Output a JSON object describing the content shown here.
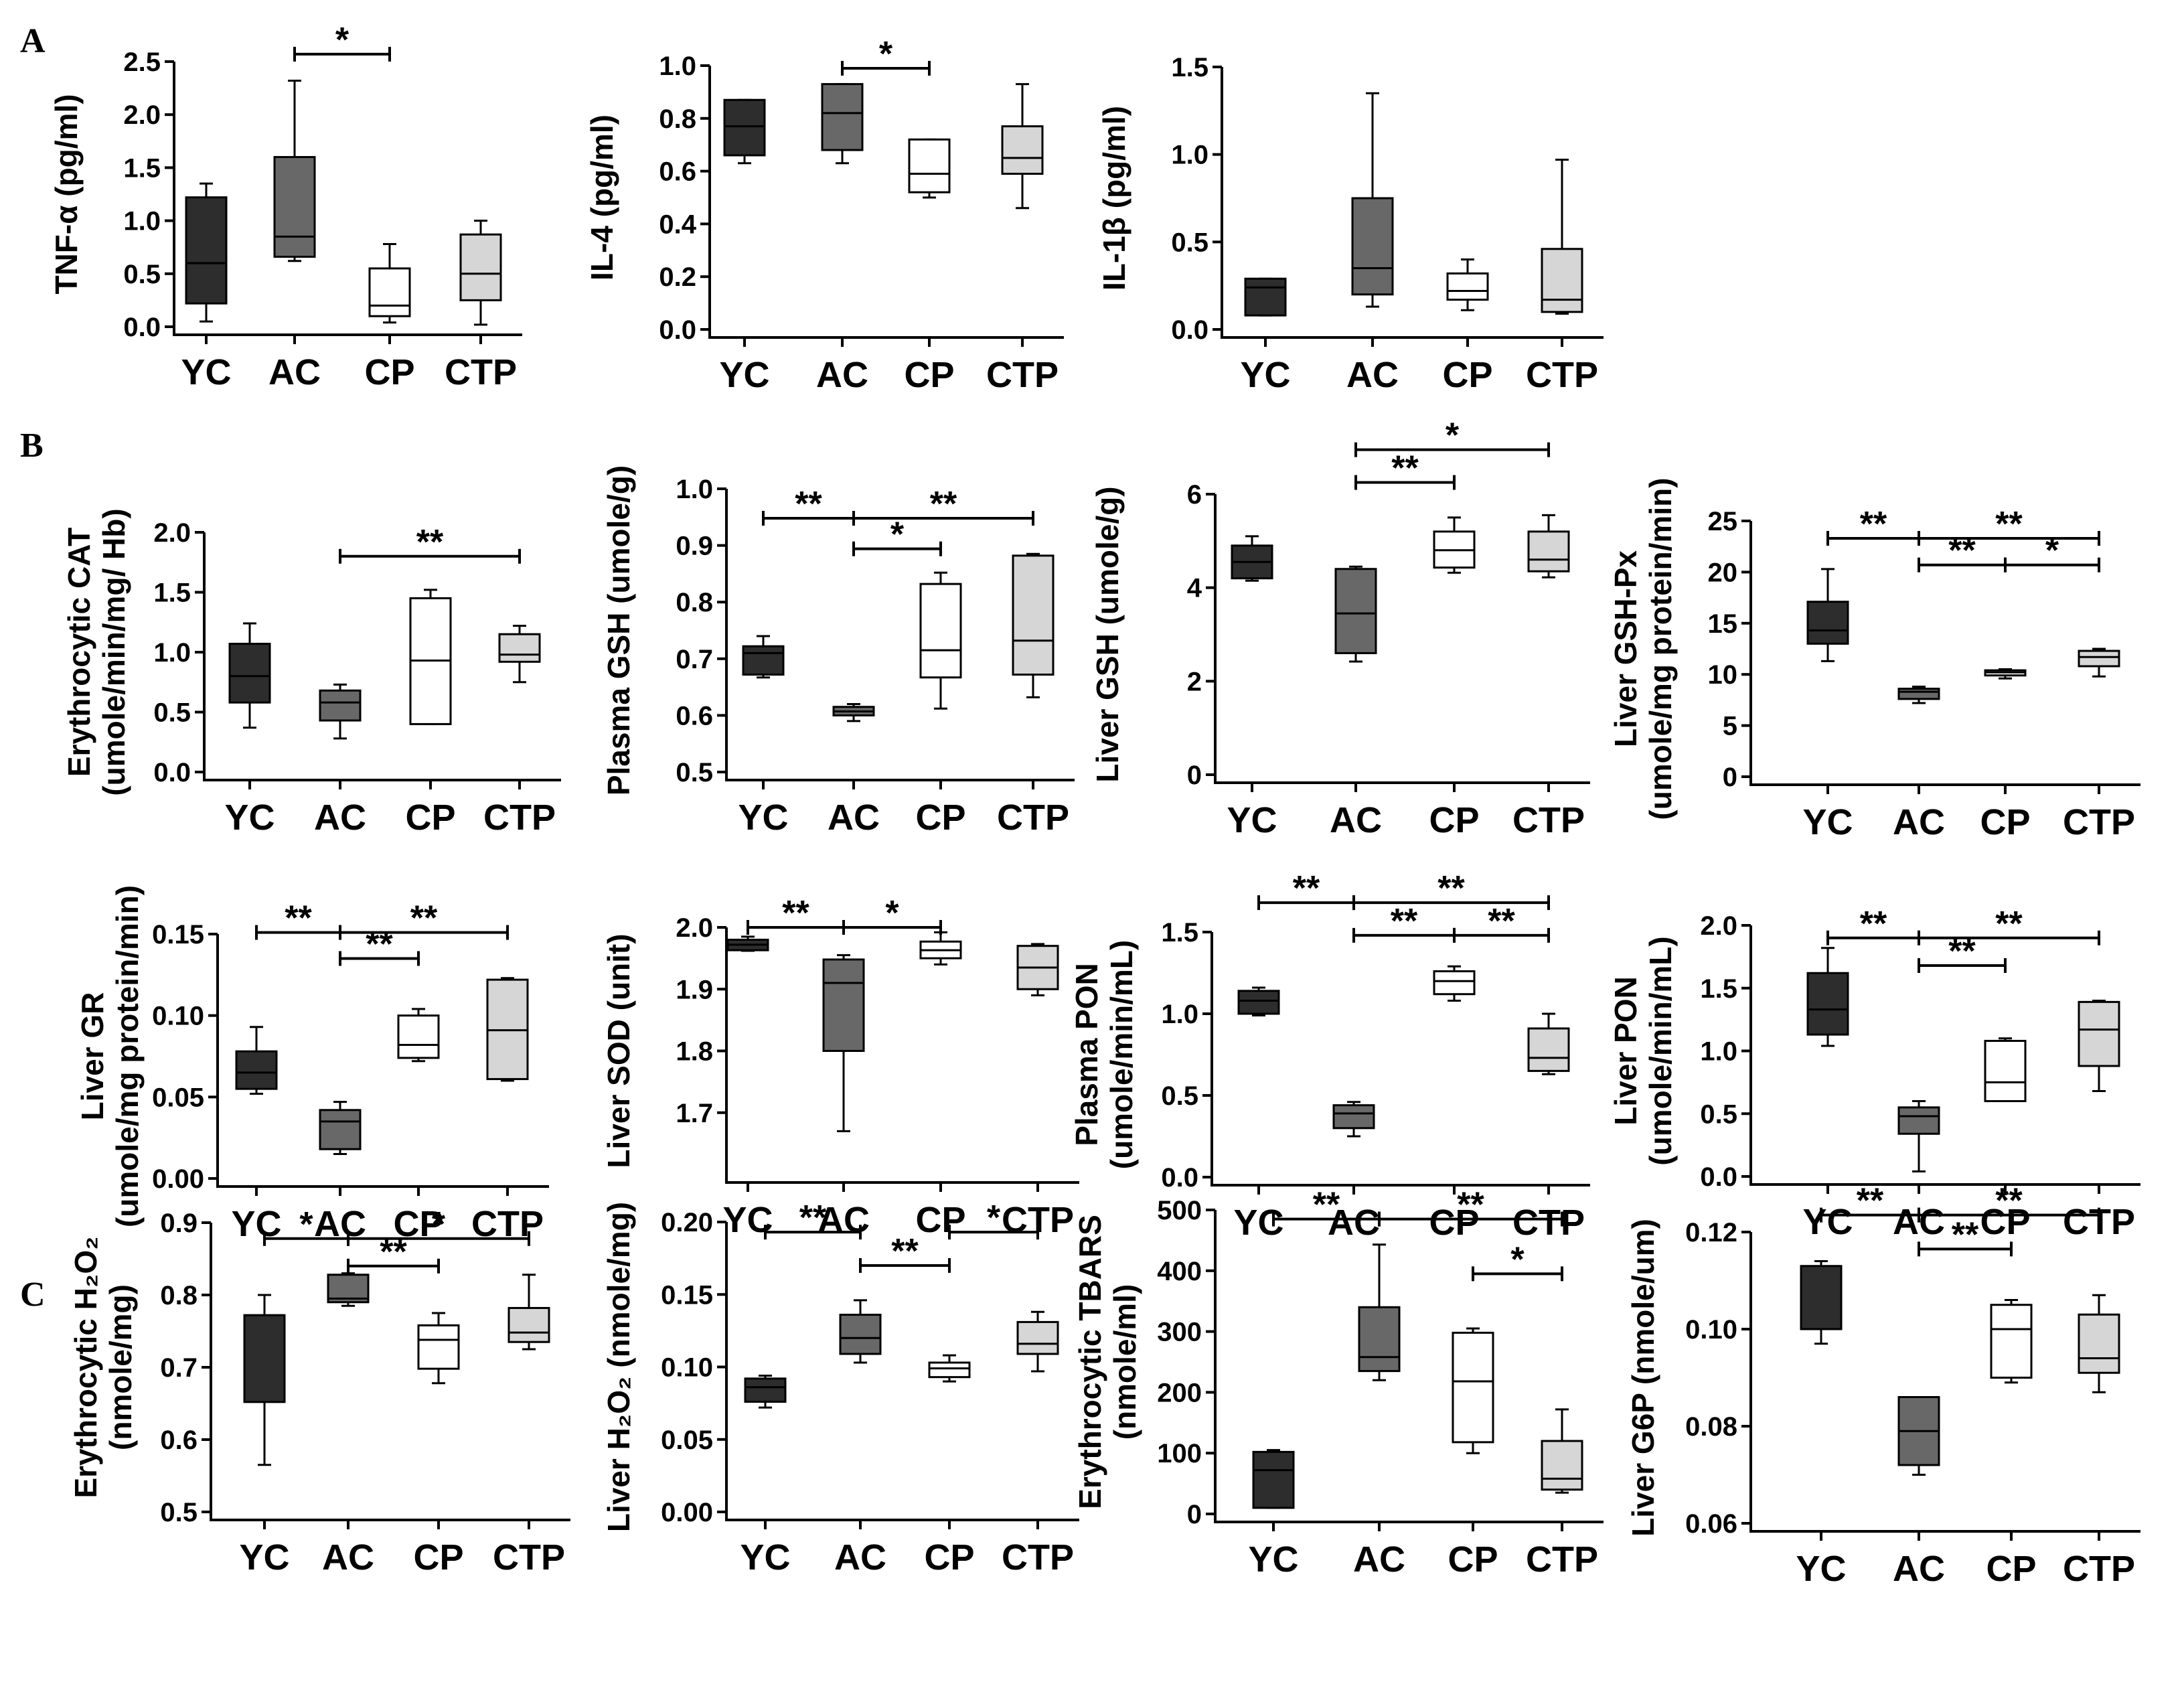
{
  "panel_labels": [
    "A",
    "B",
    "C"
  ],
  "colors": {
    "YC": "#2d2d2d",
    "AC": "#686868",
    "CP": "#ffffff",
    "CTP": "#d6d6d6",
    "stroke": "#000000"
  },
  "chart_data": [
    {
      "type": "box",
      "panel": "A",
      "ylabel": [
        "TNF-α (pg/ml)"
      ],
      "ylim": [
        0,
        2.5
      ],
      "ticks": [
        "0.0",
        "0.5",
        "1.0",
        "1.5",
        "2.0",
        "2.5"
      ],
      "categories": [
        "YC",
        "AC",
        "CP",
        "CTP"
      ],
      "boxes": [
        {
          "min": 0.05,
          "q1": 0.22,
          "median": 0.6,
          "q3": 1.22,
          "max": 1.35
        },
        {
          "min": 0.62,
          "q1": 0.66,
          "median": 0.85,
          "q3": 1.6,
          "max": 2.32
        },
        {
          "min": 0.04,
          "q1": 0.1,
          "median": 0.2,
          "q3": 0.55,
          "max": 0.78
        },
        {
          "min": 0.02,
          "q1": 0.25,
          "median": 0.5,
          "q3": 0.87,
          "max": 1.0
        }
      ],
      "significance": [
        {
          "from": 1,
          "to": 2,
          "y": 2.57,
          "label": "*"
        }
      ]
    },
    {
      "type": "box",
      "panel": "A",
      "ylabel": [
        "IL-4 (pg/ml)"
      ],
      "ylim": [
        0,
        1.0
      ],
      "ticks": [
        "0.0",
        "0.2",
        "0.4",
        "0.6",
        "0.8",
        "1.0"
      ],
      "categories": [
        "YC",
        "AC",
        "CP",
        "CTP"
      ],
      "boxes": [
        {
          "min": 0.63,
          "q1": 0.66,
          "median": 0.77,
          "q3": 0.87,
          "max": 0.87
        },
        {
          "min": 0.63,
          "q1": 0.68,
          "median": 0.82,
          "q3": 0.93,
          "max": 0.93
        },
        {
          "min": 0.5,
          "q1": 0.52,
          "median": 0.59,
          "q3": 0.72,
          "max": 0.72
        },
        {
          "min": 0.46,
          "q1": 0.59,
          "median": 0.65,
          "q3": 0.77,
          "max": 0.93
        }
      ],
      "significance": [
        {
          "from": 1,
          "to": 2,
          "y": 0.99,
          "label": "*"
        }
      ]
    },
    {
      "type": "box",
      "panel": "A",
      "ylabel": [
        "IL-1β (pg/ml)"
      ],
      "ylim": [
        0,
        1.5
      ],
      "ticks": [
        "0.0",
        "0.5",
        "1.0",
        "1.5"
      ],
      "categories": [
        "YC",
        "AC",
        "CP",
        "CTP"
      ],
      "boxes": [
        {
          "min": 0.08,
          "q1": 0.08,
          "median": 0.24,
          "q3": 0.29,
          "max": 0.29
        },
        {
          "min": 0.13,
          "q1": 0.2,
          "median": 0.35,
          "q3": 0.75,
          "max": 1.35
        },
        {
          "min": 0.11,
          "q1": 0.17,
          "median": 0.22,
          "q3": 0.32,
          "max": 0.4
        },
        {
          "min": 0.09,
          "q1": 0.1,
          "median": 0.17,
          "q3": 0.46,
          "max": 0.97
        }
      ],
      "significance": []
    },
    {
      "type": "box",
      "panel": "B",
      "ylabel": [
        "Erythrocytic CAT",
        "(umole/min/mg/ Hb)"
      ],
      "ylim": [
        0,
        2.0
      ],
      "ticks": [
        "0.0",
        "0.5",
        "1.0",
        "1.5",
        "2.0"
      ],
      "categories": [
        "YC",
        "AC",
        "CP",
        "CTP"
      ],
      "boxes": [
        {
          "min": 0.37,
          "q1": 0.58,
          "median": 0.8,
          "q3": 1.07,
          "max": 1.24
        },
        {
          "min": 0.28,
          "q1": 0.43,
          "median": 0.58,
          "q3": 0.68,
          "max": 0.73
        },
        {
          "min": 0.4,
          "q1": 0.4,
          "median": 0.93,
          "q3": 1.45,
          "max": 1.52
        },
        {
          "min": 0.75,
          "q1": 0.92,
          "median": 0.98,
          "q3": 1.15,
          "max": 1.22
        }
      ],
      "significance": [
        {
          "from": 1,
          "to": 3,
          "y": 1.8,
          "label": "**"
        }
      ]
    },
    {
      "type": "box",
      "panel": "B",
      "ylabel": [
        "Plasma GSH (umole/g)"
      ],
      "ylim": [
        0.5,
        1.0
      ],
      "ticks": [
        "0.5",
        "0.6",
        "0.7",
        "0.8",
        "0.9",
        "1.0"
      ],
      "categories": [
        "YC",
        "AC",
        "CP",
        "CTP"
      ],
      "boxes": [
        {
          "min": 0.667,
          "q1": 0.672,
          "median": 0.71,
          "q3": 0.722,
          "max": 0.74
        },
        {
          "min": 0.59,
          "q1": 0.6,
          "median": 0.607,
          "q3": 0.615,
          "max": 0.62
        },
        {
          "min": 0.612,
          "q1": 0.667,
          "median": 0.715,
          "q3": 0.832,
          "max": 0.852
        },
        {
          "min": 0.632,
          "q1": 0.672,
          "median": 0.732,
          "q3": 0.882,
          "max": 0.885
        }
      ],
      "significance": [
        {
          "from": 0,
          "to": 1,
          "y": 0.948,
          "label": "**"
        },
        {
          "from": 1,
          "to": 3,
          "y": 0.948,
          "label": "**"
        },
        {
          "from": 1,
          "to": 2,
          "y": 0.894,
          "label": "*"
        }
      ]
    },
    {
      "type": "box",
      "panel": "B",
      "ylabel": [
        "Liver GSH (umole/g)"
      ],
      "ylim": [
        0,
        6
      ],
      "ticks": [
        "0",
        "2",
        "4",
        "6"
      ],
      "categories": [
        "YC",
        "AC",
        "CP",
        "CTP"
      ],
      "boxes": [
        {
          "min": 4.15,
          "q1": 4.2,
          "median": 4.55,
          "q3": 4.9,
          "max": 5.1
        },
        {
          "min": 2.42,
          "q1": 2.6,
          "median": 3.45,
          "q3": 4.4,
          "max": 4.45
        },
        {
          "min": 4.32,
          "q1": 4.43,
          "median": 4.8,
          "q3": 5.2,
          "max": 5.5
        },
        {
          "min": 4.22,
          "q1": 4.35,
          "median": 4.6,
          "q3": 5.2,
          "max": 5.55
        }
      ],
      "significance": [
        {
          "from": 1,
          "to": 3,
          "y": 6.95,
          "label": "*"
        },
        {
          "from": 1,
          "to": 2,
          "y": 6.25,
          "label": "**"
        }
      ]
    },
    {
      "type": "box",
      "panel": "B",
      "ylabel": [
        "Liver GSH-Px",
        "(umole/mg protein/min)"
      ],
      "ylim": [
        0,
        25
      ],
      "ticks": [
        "0",
        "5",
        "10",
        "15",
        "20",
        "25"
      ],
      "categories": [
        "YC",
        "AC",
        "CP",
        "CTP"
      ],
      "boxes": [
        {
          "min": 11.3,
          "q1": 13.0,
          "median": 14.3,
          "q3": 17.1,
          "max": 20.3
        },
        {
          "min": 7.2,
          "q1": 7.6,
          "median": 8.3,
          "q3": 8.6,
          "max": 8.8
        },
        {
          "min": 9.6,
          "q1": 9.9,
          "median": 10.2,
          "q3": 10.4,
          "max": 10.5
        },
        {
          "min": 9.8,
          "q1": 10.8,
          "median": 11.7,
          "q3": 12.3,
          "max": 12.5
        }
      ],
      "significance": [
        {
          "from": 0,
          "to": 1,
          "y": 23.3,
          "label": "**"
        },
        {
          "from": 1,
          "to": 3,
          "y": 23.3,
          "label": "**"
        },
        {
          "from": 1,
          "to": 2,
          "y": 20.7,
          "label": "**"
        },
        {
          "from": 2,
          "to": 3,
          "y": 20.7,
          "label": "*"
        }
      ]
    },
    {
      "type": "box",
      "panel": "B",
      "ylabel": [
        "Liver GR",
        "(umole/mg protein/min)"
      ],
      "ylim": [
        0,
        0.15
      ],
      "ticks": [
        "0.00",
        "0.05",
        "0.10",
        "0.15"
      ],
      "categories": [
        "YC",
        "AC",
        "CP",
        "CTP"
      ],
      "boxes": [
        {
          "min": 0.052,
          "q1": 0.055,
          "median": 0.065,
          "q3": 0.078,
          "max": 0.093
        },
        {
          "min": 0.015,
          "q1": 0.018,
          "median": 0.035,
          "q3": 0.042,
          "max": 0.047
        },
        {
          "min": 0.072,
          "q1": 0.074,
          "median": 0.082,
          "q3": 0.1,
          "max": 0.104
        },
        {
          "min": 0.06,
          "q1": 0.061,
          "median": 0.091,
          "q3": 0.122,
          "max": 0.123
        }
      ],
      "significance": [
        {
          "from": 0,
          "to": 1,
          "y": 0.151,
          "label": "**"
        },
        {
          "from": 1,
          "to": 3,
          "y": 0.151,
          "label": "**"
        },
        {
          "from": 1,
          "to": 2,
          "y": 0.135,
          "label": "**"
        }
      ]
    },
    {
      "type": "box",
      "panel": "B",
      "ylabel": [
        "Liver SOD (unit)"
      ],
      "ylim": [
        1.6,
        2.0
      ],
      "ticks": [
        "1.7",
        "1.8",
        "1.9",
        "2.0"
      ],
      "categories": [
        "YC",
        "AC",
        "CP",
        "CTP"
      ],
      "boxes": [
        {
          "min": 1.962,
          "q1": 1.963,
          "median": 1.972,
          "q3": 1.98,
          "max": 1.985
        },
        {
          "min": 1.67,
          "q1": 1.8,
          "median": 1.91,
          "q3": 1.948,
          "max": 1.955
        },
        {
          "min": 1.94,
          "q1": 1.95,
          "median": 1.963,
          "q3": 1.977,
          "max": 1.992
        },
        {
          "min": 1.89,
          "q1": 1.9,
          "median": 1.935,
          "q3": 1.97,
          "max": 1.973
        }
      ],
      "significance": [
        {
          "from": 0,
          "to": 1,
          "y": 2.0,
          "label": "**"
        },
        {
          "from": 1,
          "to": 2,
          "y": 2.0,
          "label": "*"
        }
      ]
    },
    {
      "type": "box",
      "panel": "B",
      "ylabel": [
        "Plasma PON",
        "(umole/min/mL)"
      ],
      "ylim": [
        0,
        1.5
      ],
      "ticks": [
        "0.0",
        "0.5",
        "1.0",
        "1.5"
      ],
      "categories": [
        "YC",
        "AC",
        "CP",
        "CTP"
      ],
      "boxes": [
        {
          "min": 0.99,
          "q1": 1.0,
          "median": 1.08,
          "q3": 1.14,
          "max": 1.16
        },
        {
          "min": 0.25,
          "q1": 0.3,
          "median": 0.39,
          "q3": 0.44,
          "max": 0.46
        },
        {
          "min": 1.08,
          "q1": 1.12,
          "median": 1.2,
          "q3": 1.26,
          "max": 1.29
        },
        {
          "min": 0.63,
          "q1": 0.65,
          "median": 0.73,
          "q3": 0.91,
          "max": 1.0
        }
      ],
      "significance": [
        {
          "from": 0,
          "to": 1,
          "y": 1.68,
          "label": "**"
        },
        {
          "from": 1,
          "to": 3,
          "y": 1.68,
          "label": "**"
        },
        {
          "from": 1,
          "to": 2,
          "y": 1.48,
          "label": "**"
        },
        {
          "from": 2,
          "to": 3,
          "y": 1.48,
          "label": "**"
        }
      ]
    },
    {
      "type": "box",
      "panel": "B",
      "ylabel": [
        "Liver PON",
        "(umole/min/mL)"
      ],
      "ylim": [
        0,
        2.0
      ],
      "ticks": [
        "0.0",
        "0.5",
        "1.0",
        "1.5",
        "2.0"
      ],
      "categories": [
        "YC",
        "AC",
        "CP",
        "CTP"
      ],
      "boxes": [
        {
          "min": 1.04,
          "q1": 1.13,
          "median": 1.33,
          "q3": 1.62,
          "max": 1.82
        },
        {
          "min": 0.04,
          "q1": 0.34,
          "median": 0.48,
          "q3": 0.55,
          "max": 0.6
        },
        {
          "min": 0.6,
          "q1": 0.6,
          "median": 0.75,
          "q3": 1.08,
          "max": 1.1
        },
        {
          "min": 0.68,
          "q1": 0.88,
          "median": 1.17,
          "q3": 1.39,
          "max": 1.4
        }
      ],
      "significance": [
        {
          "from": 0,
          "to": 1,
          "y": 1.9,
          "label": "**"
        },
        {
          "from": 1,
          "to": 3,
          "y": 1.9,
          "label": "**"
        },
        {
          "from": 1,
          "to": 2,
          "y": 1.68,
          "label": "**"
        }
      ]
    },
    {
      "type": "box",
      "panel": "C",
      "ylabel": [
        "Erythrocytic H₂O₂",
        "(nmole/mg)"
      ],
      "ylim": [
        0.5,
        0.9
      ],
      "ticks": [
        "0.5",
        "0.6",
        "0.7",
        "0.8",
        "0.9"
      ],
      "categories": [
        "YC",
        "AC",
        "CP",
        "CTP"
      ],
      "boxes": [
        {
          "min": 0.565,
          "q1": 0.652,
          "median": 0.772,
          "q3": 0.772,
          "max": 0.8
        },
        {
          "min": 0.785,
          "q1": 0.79,
          "median": 0.795,
          "q3": 0.828,
          "max": 0.83
        },
        {
          "min": 0.678,
          "q1": 0.698,
          "median": 0.738,
          "q3": 0.758,
          "max": 0.775
        },
        {
          "min": 0.725,
          "q1": 0.735,
          "median": 0.748,
          "q3": 0.782,
          "max": 0.828
        }
      ],
      "significance": [
        {
          "from": 0,
          "to": 1,
          "y": 0.878,
          "label": "*"
        },
        {
          "from": 1,
          "to": 3,
          "y": 0.878,
          "label": "*"
        },
        {
          "from": 1,
          "to": 2,
          "y": 0.84,
          "label": "**"
        }
      ]
    },
    {
      "type": "box",
      "panel": "C",
      "ylabel": [
        "Liver H₂O₂ (nmole/mg)"
      ],
      "ylim": [
        0,
        0.2
      ],
      "ticks": [
        "0.00",
        "0.05",
        "0.10",
        "0.15",
        "0.20"
      ],
      "categories": [
        "YC",
        "AC",
        "CP",
        "CTP"
      ],
      "boxes": [
        {
          "min": 0.072,
          "q1": 0.076,
          "median": 0.086,
          "q3": 0.092,
          "max": 0.094
        },
        {
          "min": 0.103,
          "q1": 0.109,
          "median": 0.12,
          "q3": 0.136,
          "max": 0.146
        },
        {
          "min": 0.09,
          "q1": 0.093,
          "median": 0.099,
          "q3": 0.103,
          "max": 0.108
        },
        {
          "min": 0.097,
          "q1": 0.109,
          "median": 0.116,
          "q3": 0.131,
          "max": 0.138
        }
      ],
      "significance": [
        {
          "from": 0,
          "to": 1,
          "y": 0.193,
          "label": "**"
        },
        {
          "from": 2,
          "to": 3,
          "y": 0.193,
          "label": "*"
        },
        {
          "from": 1,
          "to": 2,
          "y": 0.17,
          "label": "**"
        }
      ]
    },
    {
      "type": "box",
      "panel": "C",
      "ylabel": [
        "Erythrocytic TBARS",
        "(nmole/ml)"
      ],
      "ylim": [
        0,
        500
      ],
      "ticks": [
        "0",
        "100",
        "200",
        "300",
        "400",
        "500"
      ],
      "categories": [
        "YC",
        "AC",
        "CP",
        "CTP"
      ],
      "boxes": [
        {
          "min": 10,
          "q1": 10,
          "median": 72,
          "q3": 102,
          "max": 105
        },
        {
          "min": 220,
          "q1": 235,
          "median": 258,
          "q3": 340,
          "max": 443
        },
        {
          "min": 100,
          "q1": 118,
          "median": 218,
          "q3": 298,
          "max": 305
        },
        {
          "min": 35,
          "q1": 40,
          "median": 58,
          "q3": 120,
          "max": 172
        }
      ],
      "significance": [
        {
          "from": 0,
          "to": 1,
          "y": 485,
          "label": "**"
        },
        {
          "from": 1,
          "to": 3,
          "y": 485,
          "label": "**"
        },
        {
          "from": 2,
          "to": 3,
          "y": 395,
          "label": "*"
        }
      ]
    },
    {
      "type": "box",
      "panel": "C",
      "ylabel": [
        "Liver G6P (nmole/um)"
      ],
      "ylim": [
        0.06,
        0.12
      ],
      "ticks": [
        "0.06",
        "0.08",
        "0.10",
        "0.12"
      ],
      "categories": [
        "YC",
        "AC",
        "CP",
        "CTP"
      ],
      "boxes": [
        {
          "min": 0.097,
          "q1": 0.1,
          "median": 0.1,
          "q3": 0.113,
          "max": 0.114
        },
        {
          "min": 0.07,
          "q1": 0.072,
          "median": 0.079,
          "q3": 0.086,
          "max": 0.086
        },
        {
          "min": 0.089,
          "q1": 0.09,
          "median": 0.1,
          "q3": 0.105,
          "max": 0.106
        },
        {
          "min": 0.087,
          "q1": 0.091,
          "median": 0.094,
          "q3": 0.103,
          "max": 0.107
        }
      ],
      "significance": [
        {
          "from": 0,
          "to": 1,
          "y": 0.1235,
          "label": "**"
        },
        {
          "from": 1,
          "to": 3,
          "y": 0.1235,
          "label": "**"
        },
        {
          "from": 1,
          "to": 2,
          "y": 0.1165,
          "label": "**"
        }
      ]
    }
  ]
}
